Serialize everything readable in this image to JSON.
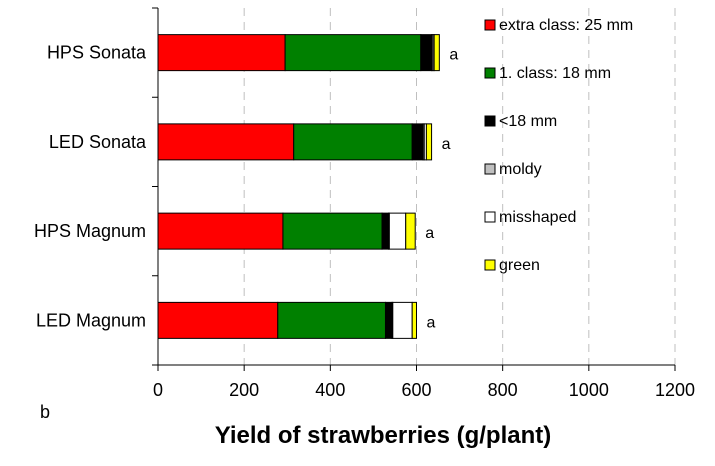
{
  "chart_data": {
    "type": "bar",
    "orientation": "horizontal",
    "stacked": true,
    "panel_label": "b",
    "xlabel": "Yield of strawberries (g/plant)",
    "ylabel": "",
    "xlim": [
      0,
      1200
    ],
    "x_ticks": [
      "0",
      "200",
      "400",
      "600",
      "800",
      "1000",
      "1200"
    ],
    "grid": "vertical dashed",
    "legend_position": "top-right",
    "categories": [
      "HPS Sonata",
      "LED Sonata",
      "HPS Magnum",
      "LED Magnum"
    ],
    "series": [
      {
        "name": "extra class: 25 mm",
        "color": "#ff0000",
        "values": [
          295,
          315,
          290,
          278
        ]
      },
      {
        "name": "1. class: 18 mm",
        "color": "#008000",
        "values": [
          315,
          275,
          230,
          250
        ]
      },
      {
        "name": "<18 mm",
        "color": "#000000",
        "values": [
          25,
          25,
          15,
          15
        ]
      },
      {
        "name": "moldy",
        "color": "#c0c0c0",
        "values": [
          3,
          3,
          2,
          2
        ]
      },
      {
        "name": "misshaped",
        "color": "#ffffff",
        "values": [
          3,
          5,
          38,
          45
        ]
      },
      {
        "name": "green",
        "color": "#ffff00",
        "values": [
          12,
          12,
          22,
          10
        ]
      }
    ],
    "annotations": [
      "a",
      "a",
      "a",
      "a"
    ]
  }
}
